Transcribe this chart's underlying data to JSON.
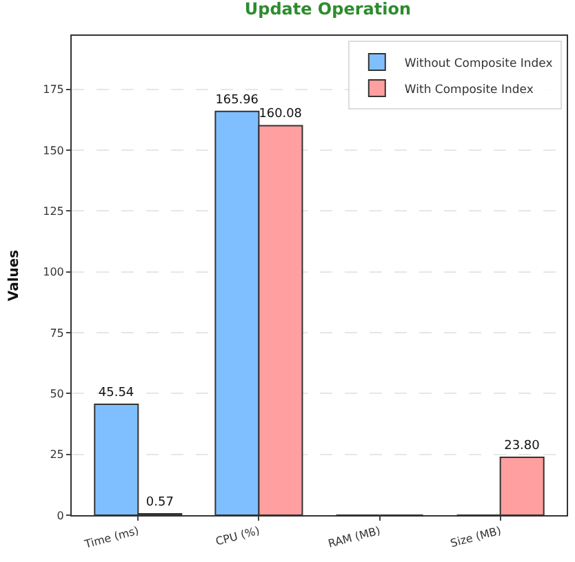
{
  "chart_data": {
    "type": "bar",
    "title": "Update Operation",
    "ylabel": "Values",
    "categories": [
      "Time (ms)",
      "CPU (%)",
      "RAM (MB)",
      "Size (MB)"
    ],
    "series": [
      {
        "name": "Without Composite Index",
        "color": "#80bfff",
        "values": [
          45.54,
          165.96,
          0,
          0
        ],
        "value_labels": [
          "45.54",
          "165.96",
          null,
          null
        ]
      },
      {
        "name": "With Composite Index",
        "color": "#ff9f9f",
        "values": [
          0.57,
          160.08,
          0,
          23.8
        ],
        "value_labels": [
          "0.57",
          "160.08",
          null,
          "23.80"
        ]
      }
    ],
    "ylim": [
      0,
      197
    ],
    "yticks": [
      0,
      25,
      50,
      75,
      100,
      125,
      150,
      175
    ],
    "grid": "y",
    "legend": "top right"
  }
}
